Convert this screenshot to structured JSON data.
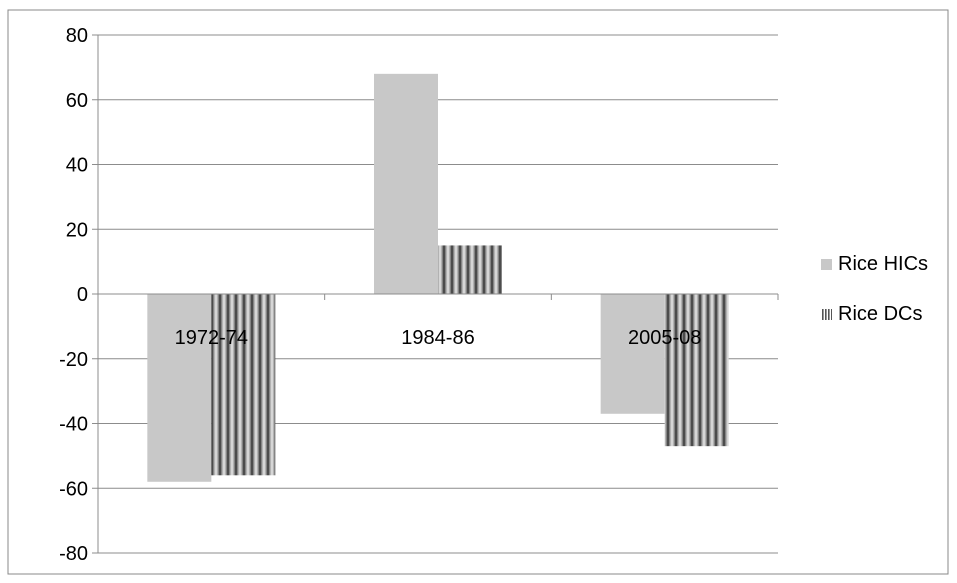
{
  "chart_data": {
    "type": "bar",
    "categories": [
      "1972-74",
      "1984-86",
      "2005-08"
    ],
    "series": [
      {
        "name": "Rice HICs",
        "values": [
          -58,
          68,
          -37
        ],
        "color": "#c8c8c8",
        "pattern": "solid"
      },
      {
        "name": "Rice DCs",
        "values": [
          -56,
          15,
          -47
        ],
        "color": "#9a9a9a",
        "pattern": "vertical-stripes"
      }
    ],
    "ylim": [
      -80,
      80
    ],
    "yticks": [
      80,
      60,
      40,
      20,
      0,
      -20,
      -40,
      -60,
      -80
    ],
    "grid": true,
    "legend": "right"
  }
}
